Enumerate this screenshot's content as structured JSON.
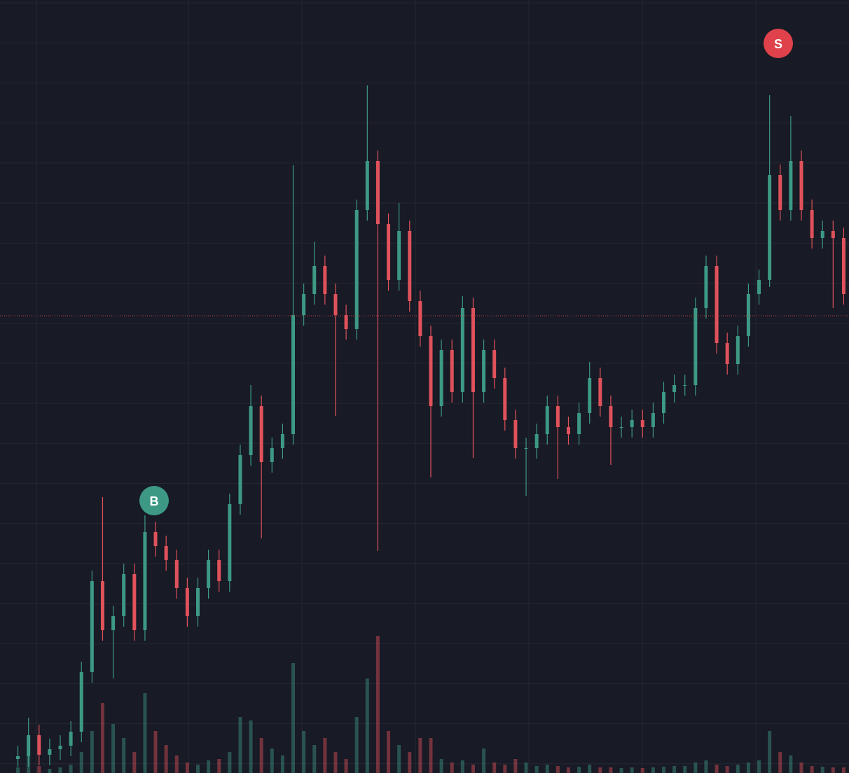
{
  "chart_data": {
    "type": "candlestick",
    "open": [
      2.0,
      2.4,
      5.4,
      2.6,
      3.4,
      3.9,
      5.9,
      14.4,
      27.4,
      20.4,
      22.4,
      28.4,
      20.4,
      34.4,
      32.4,
      30.4,
      26.4,
      22.4,
      26.4,
      30.4,
      27.4,
      38.4,
      45.4,
      52.4,
      44.4,
      46.4,
      48.4,
      65.4,
      68.4,
      72.4,
      68.4,
      65.4,
      63.4,
      80.4,
      87.4,
      78.4,
      70.4,
      77.4,
      67.4,
      62.4,
      52.4,
      60.4,
      54.4,
      66.4,
      54.4,
      60.4,
      56.4,
      50.4,
      46.4,
      46.4,
      48.4,
      52.4,
      49.4,
      48.4,
      51.4,
      56.4,
      52.4,
      49.4,
      49.4,
      50.4,
      49.4,
      51.4,
      54.4,
      55.4,
      55.4,
      66.4,
      72.4,
      61.4,
      58.4,
      62.4,
      68.4,
      70.4,
      85.4,
      80.4,
      87.4,
      80.4,
      76.4,
      77.4,
      76.4
    ],
    "high": [
      3.9,
      7.9,
      6.9,
      4.9,
      5.4,
      7.4,
      15.9,
      28.9,
      39.4,
      23.9,
      29.9,
      29.9,
      36.8,
      35.9,
      33.9,
      31.9,
      27.9,
      27.9,
      31.9,
      31.9,
      39.9,
      46.9,
      55.4,
      53.9,
      47.9,
      49.9,
      86.8,
      69.9,
      75.9,
      73.9,
      69.9,
      66.9,
      81.9,
      98.2,
      88.9,
      79.9,
      81.4,
      78.9,
      68.9,
      63.9,
      61.9,
      61.9,
      68.1,
      67.9,
      61.9,
      61.9,
      57.9,
      51.9,
      47.9,
      49.9,
      53.9,
      53.9,
      50.9,
      52.9,
      58.7,
      57.9,
      53.9,
      50.9,
      51.9,
      51.9,
      52.9,
      55.9,
      56.9,
      56.9,
      67.9,
      73.9,
      73.9,
      62.9,
      63.9,
      69.9,
      71.9,
      96.8,
      86.9,
      93.8,
      88.9,
      81.9,
      78.9,
      78.9,
      77.9
    ],
    "low": [
      0.9,
      0.9,
      1.1,
      1.1,
      1.9,
      2.4,
      4.4,
      12.9,
      18.9,
      13.5,
      20.9,
      18.9,
      18.9,
      30.9,
      28.9,
      24.9,
      20.9,
      20.9,
      24.9,
      25.9,
      25.9,
      36.9,
      43.9,
      33.5,
      42.9,
      44.9,
      46.9,
      63.9,
      66.9,
      66.9,
      51.0,
      61.9,
      61.9,
      78.9,
      31.7,
      68.9,
      68.9,
      65.9,
      60.9,
      42.2,
      50.9,
      52.9,
      52.9,
      45.0,
      52.9,
      54.9,
      48.9,
      44.9,
      39.6,
      44.9,
      46.9,
      42.0,
      46.9,
      46.9,
      49.9,
      50.9,
      44.0,
      47.9,
      47.9,
      47.9,
      47.9,
      49.9,
      52.9,
      53.9,
      53.9,
      64.9,
      59.9,
      56.9,
      56.9,
      60.9,
      66.9,
      69.4,
      78.9,
      78.9,
      78.9,
      74.9,
      74.9,
      66.4,
      66.9
    ],
    "close": [
      2.4,
      5.4,
      2.6,
      3.4,
      3.9,
      5.9,
      14.4,
      27.4,
      20.4,
      22.4,
      28.4,
      20.4,
      34.4,
      32.4,
      30.4,
      26.4,
      22.4,
      26.4,
      30.4,
      27.4,
      38.4,
      45.4,
      52.4,
      44.4,
      46.4,
      48.4,
      65.4,
      68.4,
      72.4,
      68.4,
      65.4,
      63.4,
      80.4,
      87.4,
      78.4,
      70.4,
      77.4,
      67.4,
      62.4,
      52.4,
      60.4,
      54.4,
      66.4,
      54.4,
      60.4,
      56.4,
      50.4,
      46.4,
      46.4,
      48.4,
      52.4,
      49.4,
      48.4,
      51.4,
      56.4,
      52.4,
      49.4,
      49.4,
      50.4,
      49.4,
      51.4,
      54.4,
      55.4,
      55.4,
      66.4,
      72.4,
      61.4,
      58.4,
      62.4,
      68.4,
      70.4,
      85.4,
      80.4,
      87.4,
      80.4,
      76.4,
      77.4,
      76.4,
      68.4
    ],
    "volume": [
      0.8,
      2.5,
      1.0,
      0.6,
      0.8,
      1.2,
      3.0,
      6.0,
      10.0,
      7.0,
      5.0,
      3.0,
      11.4,
      6.0,
      4.0,
      2.5,
      1.5,
      1.2,
      1.8,
      2.0,
      3.0,
      8.0,
      7.5,
      5.0,
      3.5,
      2.5,
      15.7,
      6.0,
      4.0,
      5.0,
      3.0,
      2.0,
      8.0,
      13.5,
      19.6,
      6.0,
      4.0,
      3.0,
      5.0,
      5.0,
      2.0,
      1.5,
      1.8,
      1.2,
      3.5,
      1.5,
      1.2,
      2.0,
      1.5,
      1.0,
      1.2,
      1.0,
      0.8,
      0.9,
      1.2,
      0.8,
      0.8,
      0.7,
      0.8,
      0.7,
      0.8,
      0.9,
      1.0,
      1.0,
      1.5,
      1.8,
      1.2,
      1.0,
      1.2,
      1.5,
      1.8,
      6.0,
      3.0,
      2.5,
      1.5,
      1.0,
      0.9,
      0.8,
      0.8
    ],
    "ylim": [
      0,
      110.4
    ],
    "vlim": [
      0,
      110.4
    ],
    "up_color": "#3d9983",
    "down_color": "#e0525b",
    "price_line": {
      "value": 65.3,
      "color": "#c0434a"
    },
    "grid": true,
    "markers": [
      {
        "label": "B",
        "color": "#3d9983"
      },
      {
        "label": "S",
        "color": "#e0424b"
      }
    ]
  }
}
